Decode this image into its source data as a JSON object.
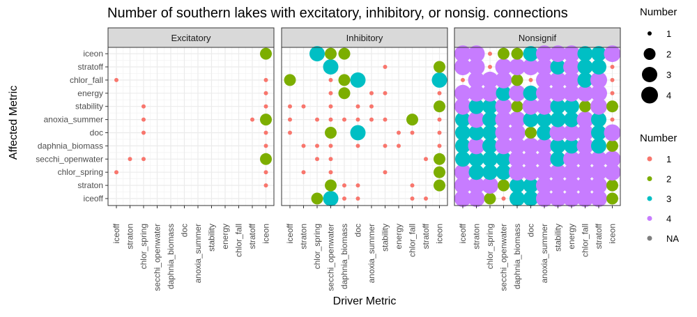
{
  "chart_data": {
    "type": "scatter",
    "title": "Number of southern lakes with excitatory, inhibitory, or nonsig. connections",
    "xlabel": "Driver Metric",
    "ylabel": "Affected Metric",
    "metrics": [
      "iceoff",
      "straton",
      "chlor_spring",
      "secchi_openwater",
      "daphnia_biomass",
      "doc",
      "anoxia_summer",
      "stability",
      "energy",
      "chlor_fall",
      "stratoff",
      "iceon"
    ],
    "facets": [
      {
        "label": "Excitatory",
        "points": [
          [
            0,
            9,
            1
          ],
          [
            0,
            2,
            1
          ],
          [
            2,
            7,
            1
          ],
          [
            2,
            6,
            1
          ],
          [
            2,
            5,
            1
          ],
          [
            2,
            3,
            1
          ],
          [
            1,
            3,
            1
          ],
          [
            10,
            6,
            1
          ],
          [
            11,
            1,
            1
          ],
          [
            11,
            2,
            1
          ],
          [
            11,
            4,
            1
          ],
          [
            11,
            5,
            1
          ],
          [
            11,
            6,
            1
          ],
          [
            11,
            7,
            1
          ],
          [
            11,
            8,
            1
          ],
          [
            11,
            9,
            1
          ],
          [
            11,
            3,
            2
          ],
          [
            11,
            6,
            2
          ],
          [
            11,
            11,
            2
          ]
        ]
      },
      {
        "label": "Inhibitory",
        "points": [
          [
            0,
            5,
            1
          ],
          [
            0,
            6,
            1
          ],
          [
            0,
            7,
            1
          ],
          [
            0,
            9,
            2
          ],
          [
            1,
            2,
            1
          ],
          [
            1,
            4,
            1
          ],
          [
            1,
            7,
            1
          ],
          [
            2,
            0,
            2
          ],
          [
            2,
            11,
            3
          ],
          [
            2,
            3,
            1
          ],
          [
            2,
            4,
            1
          ],
          [
            2,
            6,
            1
          ],
          [
            3,
            0,
            3
          ],
          [
            3,
            1,
            2
          ],
          [
            3,
            2,
            1
          ],
          [
            3,
            3,
            1
          ],
          [
            3,
            4,
            1
          ],
          [
            3,
            5,
            2
          ],
          [
            3,
            6,
            1
          ],
          [
            3,
            7,
            1
          ],
          [
            3,
            8,
            1
          ],
          [
            3,
            9,
            1
          ],
          [
            3,
            10,
            3
          ],
          [
            3,
            11,
            2
          ],
          [
            4,
            0,
            1
          ],
          [
            4,
            1,
            1
          ],
          [
            4,
            6,
            1
          ],
          [
            4,
            8,
            2
          ],
          [
            4,
            9,
            2
          ],
          [
            4,
            11,
            2
          ],
          [
            5,
            0,
            1
          ],
          [
            5,
            1,
            1
          ],
          [
            5,
            4,
            1
          ],
          [
            5,
            5,
            3
          ],
          [
            5,
            6,
            1
          ],
          [
            5,
            7,
            1
          ],
          [
            5,
            9,
            3
          ],
          [
            6,
            6,
            1
          ],
          [
            6,
            7,
            1
          ],
          [
            6,
            8,
            1
          ],
          [
            7,
            2,
            1
          ],
          [
            7,
            4,
            1
          ],
          [
            7,
            6,
            1
          ],
          [
            7,
            8,
            1
          ],
          [
            7,
            10,
            1
          ],
          [
            8,
            4,
            1
          ],
          [
            8,
            5,
            1
          ],
          [
            9,
            0,
            1
          ],
          [
            9,
            1,
            1
          ],
          [
            9,
            5,
            1
          ],
          [
            9,
            6,
            2
          ],
          [
            10,
            0,
            1
          ],
          [
            10,
            3,
            1
          ],
          [
            11,
            1,
            2
          ],
          [
            11,
            2,
            2
          ],
          [
            11,
            3,
            2
          ],
          [
            11,
            4,
            1
          ],
          [
            11,
            5,
            1
          ],
          [
            11,
            6,
            1
          ],
          [
            11,
            7,
            2
          ],
          [
            11,
            8,
            1
          ],
          [
            11,
            9,
            3
          ],
          [
            11,
            10,
            2
          ]
        ]
      },
      {
        "label": "Nonsignif",
        "points": [
          [
            0,
            0,
            4
          ],
          [
            0,
            1,
            4
          ],
          [
            0,
            2,
            4
          ],
          [
            0,
            3,
            3
          ],
          [
            0,
            4,
            3
          ],
          [
            0,
            5,
            3
          ],
          [
            0,
            6,
            3
          ],
          [
            0,
            7,
            4
          ],
          [
            0,
            8,
            4
          ],
          [
            0,
            9,
            1
          ],
          [
            0,
            10,
            4
          ],
          [
            0,
            11,
            4
          ],
          [
            1,
            0,
            4
          ],
          [
            1,
            1,
            4
          ],
          [
            1,
            2,
            3
          ],
          [
            1,
            3,
            3
          ],
          [
            1,
            4,
            4
          ],
          [
            1,
            5,
            3
          ],
          [
            1,
            6,
            4
          ],
          [
            1,
            7,
            3
          ],
          [
            1,
            8,
            4
          ],
          [
            1,
            9,
            4
          ],
          [
            1,
            10,
            4
          ],
          [
            1,
            11,
            4
          ],
          [
            2,
            0,
            2
          ],
          [
            2,
            1,
            4
          ],
          [
            2,
            2,
            3
          ],
          [
            2,
            3,
            3
          ],
          [
            2,
            4,
            3
          ],
          [
            2,
            5,
            3
          ],
          [
            2,
            6,
            3
          ],
          [
            2,
            7,
            3
          ],
          [
            2,
            8,
            4
          ],
          [
            2,
            9,
            4
          ],
          [
            2,
            10,
            1
          ],
          [
            2,
            11,
            1
          ],
          [
            3,
            0,
            1
          ],
          [
            3,
            1,
            2
          ],
          [
            3,
            2,
            3
          ],
          [
            3,
            3,
            3
          ],
          [
            3,
            4,
            4
          ],
          [
            3,
            5,
            4
          ],
          [
            3,
            6,
            4
          ],
          [
            3,
            7,
            4
          ],
          [
            3,
            8,
            3
          ],
          [
            3,
            9,
            4
          ],
          [
            3,
            10,
            4
          ],
          [
            3,
            11,
            2
          ],
          [
            4,
            0,
            3
          ],
          [
            4,
            1,
            3
          ],
          [
            4,
            2,
            4
          ],
          [
            4,
            3,
            4
          ],
          [
            4,
            4,
            4
          ],
          [
            4,
            5,
            4
          ],
          [
            4,
            6,
            4
          ],
          [
            4,
            7,
            2
          ],
          [
            4,
            8,
            4
          ],
          [
            4,
            9,
            2
          ],
          [
            4,
            10,
            4
          ],
          [
            4,
            11,
            2
          ],
          [
            5,
            0,
            3
          ],
          [
            5,
            1,
            3
          ],
          [
            5,
            2,
            4
          ],
          [
            5,
            3,
            4
          ],
          [
            5,
            4,
            4
          ],
          [
            5,
            5,
            2
          ],
          [
            5,
            6,
            3
          ],
          [
            5,
            7,
            4
          ],
          [
            5,
            8,
            3
          ],
          [
            5,
            9,
            1
          ],
          [
            5,
            10,
            4
          ],
          [
            5,
            11,
            3
          ],
          [
            6,
            0,
            4
          ],
          [
            6,
            1,
            4
          ],
          [
            6,
            2,
            4
          ],
          [
            6,
            3,
            4
          ],
          [
            6,
            4,
            4
          ],
          [
            6,
            5,
            3
          ],
          [
            6,
            6,
            3
          ],
          [
            6,
            7,
            4
          ],
          [
            6,
            8,
            4
          ],
          [
            6,
            9,
            4
          ],
          [
            6,
            10,
            4
          ],
          [
            6,
            11,
            4
          ],
          [
            7,
            0,
            4
          ],
          [
            7,
            1,
            4
          ],
          [
            7,
            2,
            4
          ],
          [
            7,
            3,
            3
          ],
          [
            7,
            4,
            3
          ],
          [
            7,
            5,
            4
          ],
          [
            7,
            6,
            3
          ],
          [
            7,
            7,
            3
          ],
          [
            7,
            8,
            4
          ],
          [
            7,
            9,
            4
          ],
          [
            7,
            10,
            3
          ],
          [
            7,
            11,
            4
          ],
          [
            8,
            0,
            4
          ],
          [
            8,
            1,
            4
          ],
          [
            8,
            2,
            4
          ],
          [
            8,
            3,
            4
          ],
          [
            8,
            4,
            3
          ],
          [
            8,
            5,
            4
          ],
          [
            8,
            6,
            3
          ],
          [
            8,
            7,
            3
          ],
          [
            8,
            8,
            4
          ],
          [
            8,
            9,
            4
          ],
          [
            8,
            10,
            4
          ],
          [
            8,
            11,
            4
          ],
          [
            9,
            0,
            4
          ],
          [
            9,
            1,
            4
          ],
          [
            9,
            2,
            4
          ],
          [
            9,
            3,
            4
          ],
          [
            9,
            4,
            4
          ],
          [
            9,
            5,
            4
          ],
          [
            9,
            6,
            4
          ],
          [
            9,
            7,
            2
          ],
          [
            9,
            8,
            4
          ],
          [
            9,
            9,
            3
          ],
          [
            9,
            10,
            3
          ],
          [
            9,
            11,
            3
          ],
          [
            10,
            0,
            4
          ],
          [
            10,
            1,
            4
          ],
          [
            10,
            2,
            4
          ],
          [
            10,
            3,
            4
          ],
          [
            10,
            4,
            3
          ],
          [
            10,
            5,
            3
          ],
          [
            10,
            6,
            3
          ],
          [
            10,
            7,
            4
          ],
          [
            10,
            8,
            4
          ],
          [
            10,
            9,
            4
          ],
          [
            10,
            10,
            3
          ],
          [
            10,
            11,
            3
          ],
          [
            11,
            0,
            2
          ],
          [
            11,
            1,
            2
          ],
          [
            11,
            2,
            4
          ],
          [
            11,
            3,
            4
          ],
          [
            11,
            4,
            2
          ],
          [
            11,
            5,
            4
          ],
          [
            11,
            6,
            1
          ],
          [
            11,
            7,
            2
          ],
          [
            11,
            8,
            1
          ],
          [
            11,
            9,
            1
          ],
          [
            11,
            10,
            1
          ],
          [
            11,
            11,
            4
          ]
        ]
      }
    ],
    "legend_size": {
      "title": "Number",
      "values": [
        1,
        2,
        3,
        4
      ],
      "labels": [
        "1",
        "2",
        "3",
        "4"
      ]
    },
    "legend_color": {
      "title": "Number",
      "labels": [
        "1",
        "2",
        "3",
        "4",
        "NA"
      ],
      "colors": [
        "#F8766D",
        "#7CAE00",
        "#00BFC4",
        "#C77CFF",
        "#7F7F7F"
      ]
    },
    "legend_placement": "right",
    "grid": true
  }
}
